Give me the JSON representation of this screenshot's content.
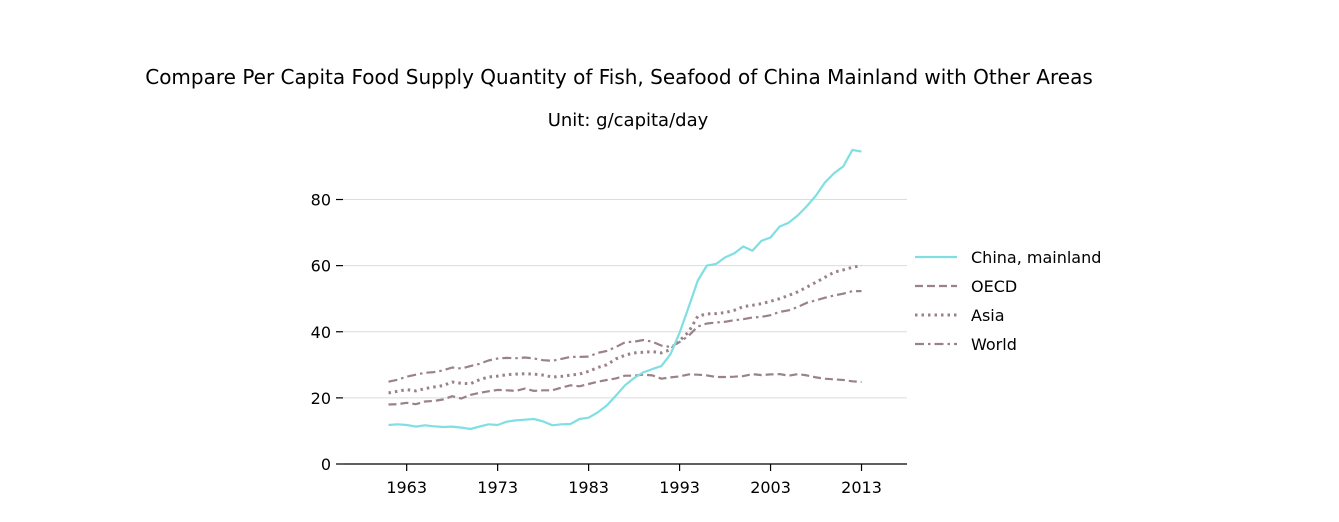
{
  "chart_data": {
    "type": "line",
    "title": "Compare Per Capita Food Supply Quantity of Fish, Seafood of China Mainland with Other Areas",
    "subtitle": "Unit: g/capita/day",
    "xlabel": "",
    "ylabel": "",
    "xlim": [
      1956,
      2018
    ],
    "ylim": [
      0,
      98
    ],
    "x_ticks": [
      1963,
      1973,
      1983,
      1993,
      2003,
      2013
    ],
    "y_ticks": [
      0,
      20,
      40,
      60,
      80
    ],
    "grid": "horizontal",
    "legend_position": "right",
    "x": [
      1961,
      1962,
      1963,
      1964,
      1965,
      1966,
      1967,
      1968,
      1969,
      1970,
      1971,
      1972,
      1973,
      1974,
      1975,
      1976,
      1977,
      1978,
      1979,
      1980,
      1981,
      1982,
      1983,
      1984,
      1985,
      1986,
      1987,
      1988,
      1989,
      1990,
      1991,
      1992,
      1993,
      1994,
      1995,
      1996,
      1997,
      1998,
      1999,
      2000,
      2001,
      2002,
      2003,
      2004,
      2005,
      2006,
      2007,
      2008,
      2009,
      2010,
      2011,
      2012,
      2013
    ],
    "series": [
      {
        "name": "China, mainland",
        "color": "#7fdfe2",
        "dash": "solid",
        "values": [
          11.8,
          12.0,
          11.8,
          11.3,
          11.7,
          11.4,
          11.2,
          11.3,
          11.0,
          10.6,
          11.3,
          12.0,
          11.8,
          12.8,
          13.2,
          13.4,
          13.6,
          12.9,
          11.7,
          12.0,
          12.1,
          13.6,
          14.0,
          15.6,
          17.7,
          20.7,
          23.8,
          26.0,
          27.7,
          28.7,
          29.6,
          33.2,
          39.7,
          47.5,
          55.5,
          60.0,
          60.5,
          62.5,
          63.7,
          65.8,
          64.5,
          67.5,
          68.5,
          71.8,
          73.0,
          75.2,
          78.0,
          81.2,
          85.2,
          88.0,
          90.0,
          95.0,
          94.5
        ]
      },
      {
        "name": "OECD",
        "color": "#9a8288",
        "dash": "dashed",
        "values": [
          18.0,
          18.1,
          18.5,
          18.1,
          18.9,
          19.1,
          19.5,
          20.5,
          19.8,
          20.9,
          21.5,
          22.0,
          22.4,
          22.3,
          22.1,
          22.8,
          22.1,
          22.3,
          22.3,
          23.1,
          23.8,
          23.5,
          24.2,
          24.9,
          25.4,
          25.9,
          26.7,
          26.7,
          27.0,
          26.8,
          25.8,
          26.2,
          26.5,
          27.1,
          27.0,
          26.8,
          26.3,
          26.3,
          26.4,
          26.6,
          27.2,
          26.9,
          27.1,
          27.2,
          26.7,
          27.2,
          26.8,
          26.2,
          25.8,
          25.6,
          25.4,
          25.0,
          24.8
        ]
      },
      {
        "name": "Asia",
        "color": "#9a8288",
        "dash": "dotted",
        "values": [
          21.5,
          22.0,
          22.5,
          22.1,
          22.8,
          23.3,
          23.7,
          24.8,
          24.4,
          24.3,
          25.5,
          26.3,
          26.6,
          27.0,
          27.2,
          27.3,
          27.2,
          26.9,
          26.3,
          26.5,
          26.9,
          27.2,
          28.0,
          29.2,
          30.0,
          31.8,
          32.9,
          33.6,
          33.8,
          34.0,
          33.6,
          34.6,
          37.3,
          40.0,
          44.7,
          45.4,
          45.5,
          45.8,
          46.5,
          47.6,
          48.0,
          48.5,
          49.2,
          50.0,
          51.0,
          52.1,
          53.5,
          55.0,
          56.5,
          58.0,
          58.7,
          59.5,
          60.0
        ]
      },
      {
        "name": "World",
        "color": "#9a8288",
        "dash": "dashdot",
        "values": [
          24.9,
          25.5,
          26.4,
          27.0,
          27.6,
          27.8,
          28.3,
          29.2,
          28.9,
          29.6,
          30.3,
          31.3,
          31.9,
          32.1,
          32.0,
          32.2,
          31.9,
          31.4,
          31.2,
          31.8,
          32.4,
          32.4,
          32.5,
          33.6,
          34.2,
          35.4,
          36.8,
          37.0,
          37.5,
          37.0,
          35.8,
          35.4,
          36.9,
          38.8,
          41.6,
          42.5,
          42.8,
          43.0,
          43.5,
          43.8,
          44.3,
          44.5,
          45.0,
          46.0,
          46.5,
          47.5,
          48.8,
          49.5,
          50.3,
          51.0,
          51.5,
          52.3,
          52.3
        ]
      }
    ]
  }
}
